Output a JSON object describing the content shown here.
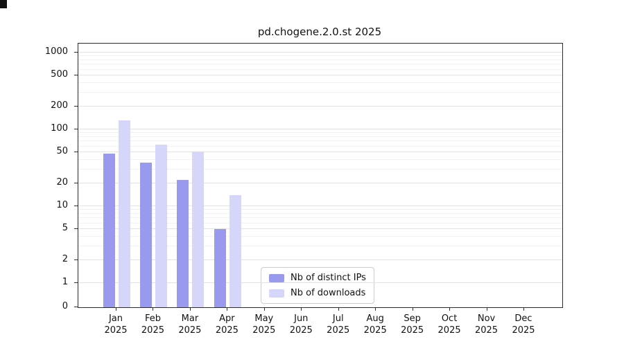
{
  "chart_data": {
    "type": "bar",
    "title": "pd.chogene.2.0.st 2025",
    "categories": [
      "Jan",
      "Feb",
      "Mar",
      "Apr",
      "May",
      "Jun",
      "Jul",
      "Aug",
      "Sep",
      "Oct",
      "Nov",
      "Dec"
    ],
    "xtick_year": "2025",
    "series": [
      {
        "name": "Nb of distinct IPs",
        "color": "#9999ee",
        "values": [
          48,
          37,
          22,
          5,
          0,
          0,
          0,
          0,
          0,
          0,
          0,
          0
        ]
      },
      {
        "name": "Nb of downloads",
        "color": "#d6d6fa",
        "values": [
          130,
          63,
          51,
          14,
          0,
          0,
          0,
          0,
          0,
          0,
          0,
          0
        ]
      }
    ],
    "yticks": [
      0,
      1,
      2,
      5,
      10,
      20,
      50,
      100,
      200,
      500,
      1000
    ],
    "scale": "symlog",
    "ylim": [
      0,
      1300
    ],
    "grid": true,
    "legend": {
      "position": "bottom-center"
    }
  }
}
